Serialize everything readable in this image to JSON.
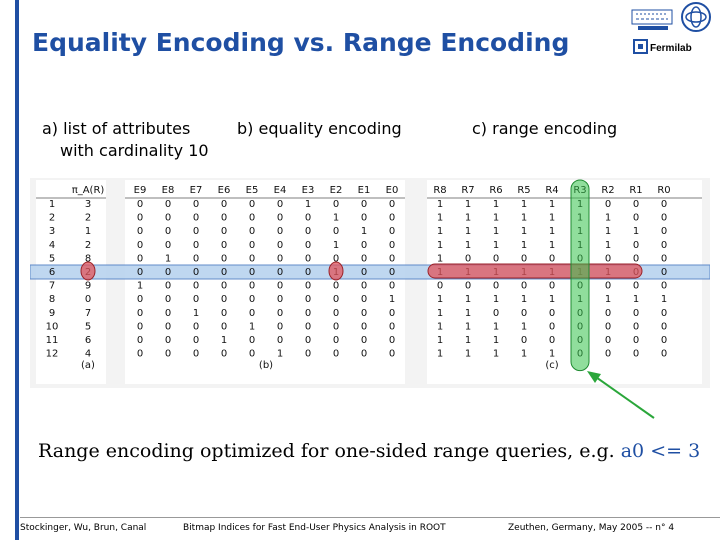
{
  "slide": {
    "title": "Equality Encoding vs. Range Encoding",
    "captions": {
      "a_line1": "a) list of attributes",
      "a_line2": "with cardinality 10",
      "b": "b) equality encoding",
      "c": "c) range encoding"
    },
    "logo_text": "Fermilab",
    "note_prefix": "Range encoding optimized for one-sided range queries, e.g.",
    "note_highlight": "a0 <= 3",
    "footer": {
      "authors": "Stockinger, Wu, Brun, Canal",
      "talk": "Bitmap Indices for Fast End-User Physics Analysis in ROOT",
      "venue": "Zeuthen, Germany, May 2005 -- n° 4"
    }
  },
  "table": {
    "a_header": "π_A(R)",
    "eq_headers": [
      "E9",
      "E8",
      "E7",
      "E6",
      "E5",
      "E4",
      "E3",
      "E2",
      "E1",
      "E0"
    ],
    "range_headers": [
      "R8",
      "R7",
      "R6",
      "R5",
      "R4",
      "R3",
      "R2",
      "R1",
      "R0"
    ],
    "rows": [
      {
        "id": "1",
        "a": "3",
        "eq": "0000001000",
        "range": "111111000"
      },
      {
        "id": "2",
        "a": "2",
        "eq": "0000000100",
        "range": "111111100"
      },
      {
        "id": "3",
        "a": "1",
        "eq": "0000000010",
        "range": "111111110"
      },
      {
        "id": "4",
        "a": "2",
        "eq": "0000000100",
        "range": "111111100"
      },
      {
        "id": "5",
        "a": "8",
        "eq": "0100000000",
        "range": "100000000"
      },
      {
        "id": "6",
        "a": "2",
        "eq": "0000000100",
        "range": "111111100"
      },
      {
        "id": "7",
        "a": "9",
        "eq": "1000000000",
        "range": "000000000"
      },
      {
        "id": "8",
        "a": "0",
        "eq": "0000000001",
        "range": "111111111"
      },
      {
        "id": "9",
        "a": "7",
        "eq": "0010000000",
        "range": "110000000"
      },
      {
        "id": "10",
        "a": "5",
        "eq": "0000100000",
        "range": "111100000"
      },
      {
        "id": "11",
        "a": "6",
        "eq": "0001000000",
        "range": "111000000"
      },
      {
        "id": "12",
        "a": "4",
        "eq": "0000010000",
        "range": "111110000"
      }
    ],
    "sub_labels": {
      "a": "(a)",
      "b": "(b)",
      "c": "(c)"
    }
  }
}
